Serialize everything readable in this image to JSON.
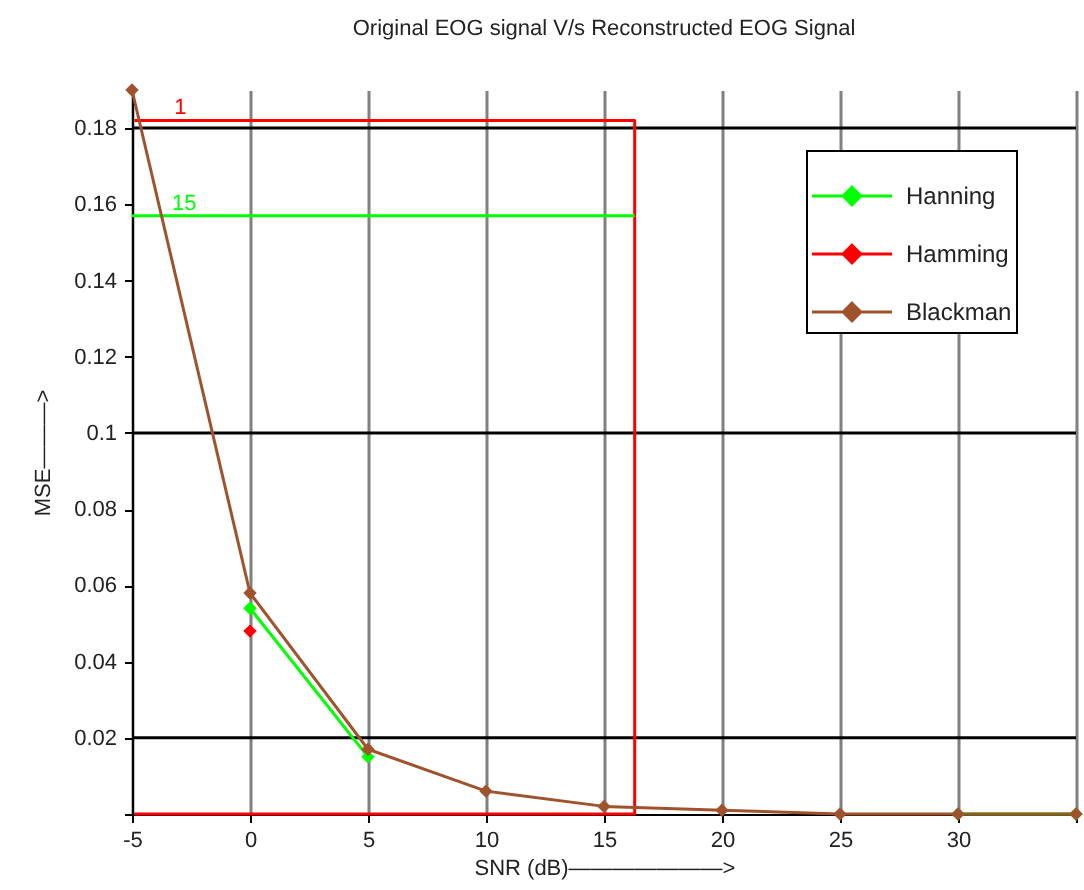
{
  "chart_data": {
    "type": "line",
    "title": "Original EOG signal V/s Reconstructed EOG Signal",
    "xlabel": "SNR (dB)———————>",
    "ylabel": "MSE———>",
    "x": [
      -5,
      0,
      5,
      10,
      15,
      20,
      25,
      30,
      35
    ],
    "series": [
      {
        "type": "line",
        "color": "#ff0000",
        "x": [
          -4.9,
          16.3,
          16.3,
          -4.9
        ],
        "values": [
          0.182,
          0.182,
          0,
          0
        ],
        "marker": "none"
      },
      {
        "type": "line",
        "color": "#00ff00",
        "x": [
          -5,
          16.3
        ],
        "values": [
          0.157,
          0.157
        ],
        "marker": "none"
      },
      {
        "name": "Hanning",
        "color": "#00ff00",
        "values": [
          null,
          0.054,
          0.015,
          null,
          null,
          null,
          null,
          0,
          0
        ]
      },
      {
        "name": "Hamming",
        "color": "#ff0000",
        "values": [
          null,
          0.048,
          null,
          null,
          null,
          null,
          null,
          null,
          null
        ]
      },
      {
        "name": "Blackman",
        "color": "#a0522d",
        "values": [
          0.19,
          0.058,
          0.017,
          0.006,
          0.002,
          0.001,
          0,
          0,
          0
        ]
      }
    ],
    "xlim": [
      -5,
      35
    ],
    "xticks": [
      -5,
      0,
      5,
      10,
      15,
      20,
      25,
      30,
      {
        "value": 35,
        "label": null
      }
    ],
    "ylim": [
      0,
      0.19
    ],
    "yticks": [
      {
        "value": 0,
        "label": null
      },
      0.02,
      0.04,
      0.06,
      0.08,
      0.1,
      0.12,
      0.14,
      0.16,
      0.18
    ],
    "ref_lines": [
      {
        "axis": "y",
        "value": 0.02,
        "color": "#000000"
      },
      {
        "axis": "y",
        "value": 0.1,
        "color": "#000000"
      },
      {
        "axis": "y",
        "value": 0.18,
        "color": "#000000"
      }
    ],
    "annotations": [
      {
        "text": "1",
        "x": -4.9,
        "y": 0.182
      },
      {
        "text": "15",
        "x": -5,
        "y": 0.157
      }
    ],
    "grid": "x",
    "legend": "top right",
    "marker": "diamond",
    "line_style": "solid"
  }
}
